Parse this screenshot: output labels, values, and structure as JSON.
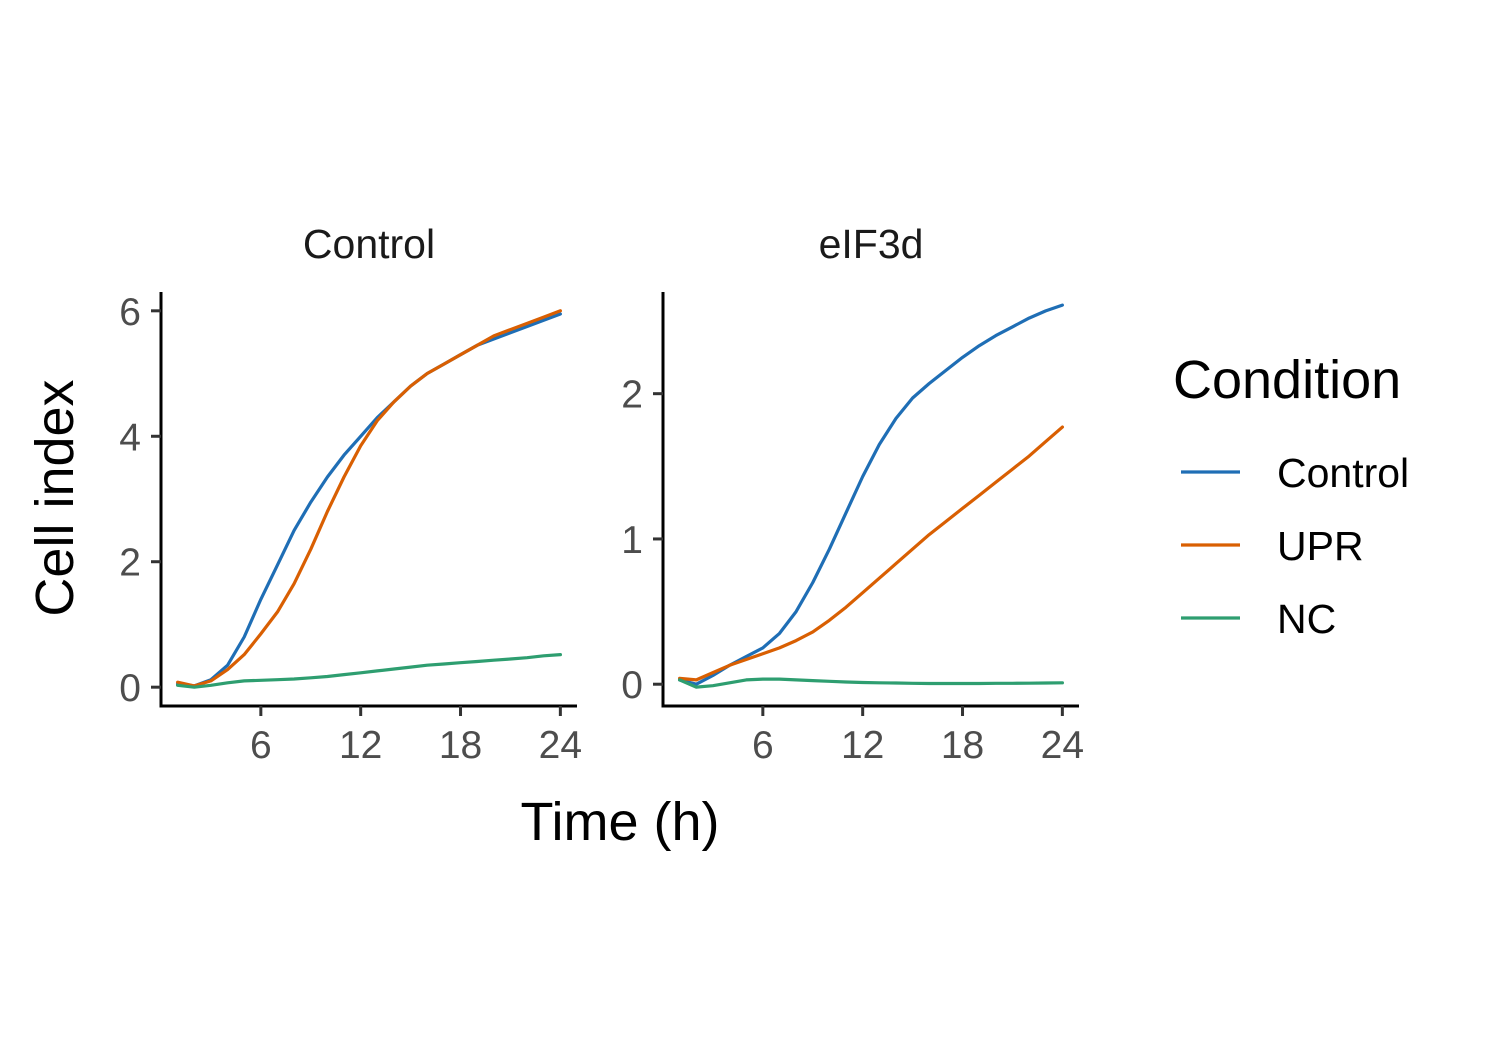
{
  "chart_data": {
    "type": "line",
    "xlabel": "Time (h)",
    "ylabel": "Cell index",
    "legend": {
      "title": "Condition",
      "position": "right",
      "entries": [
        {
          "name": "Control",
          "color": "#1F6EB5"
        },
        {
          "name": "UPR",
          "color": "#D95F02"
        },
        {
          "name": "NC",
          "color": "#2E9E70"
        }
      ]
    },
    "grid": false,
    "panels": [
      {
        "title": "Control",
        "xlim": [
          0,
          25
        ],
        "ylim": [
          -0.3,
          6.3
        ],
        "x_ticks": [
          6,
          12,
          18,
          24
        ],
        "y_ticks": [
          0,
          2,
          4,
          6
        ],
        "series": [
          {
            "name": "Control",
            "color": "#1F6EB5",
            "x": [
              1,
              2,
              3,
              4,
              5,
              6,
              7,
              8,
              9,
              10,
              11,
              12,
              13,
              14,
              15,
              16,
              17,
              18,
              19,
              20,
              21,
              22,
              23,
              24
            ],
            "y": [
              0.05,
              0.02,
              0.12,
              0.35,
              0.8,
              1.4,
              1.95,
              2.5,
              2.95,
              3.35,
              3.7,
              4.0,
              4.3,
              4.55,
              4.8,
              5.0,
              5.15,
              5.3,
              5.45,
              5.55,
              5.65,
              5.75,
              5.85,
              5.95
            ]
          },
          {
            "name": "UPR",
            "color": "#D95F02",
            "x": [
              1,
              2,
              3,
              4,
              5,
              6,
              7,
              8,
              9,
              10,
              11,
              12,
              13,
              14,
              15,
              16,
              17,
              18,
              19,
              20,
              21,
              22,
              23,
              24
            ],
            "y": [
              0.08,
              0.02,
              0.1,
              0.28,
              0.52,
              0.85,
              1.2,
              1.65,
              2.2,
              2.8,
              3.35,
              3.85,
              4.25,
              4.55,
              4.8,
              5.0,
              5.15,
              5.3,
              5.45,
              5.6,
              5.7,
              5.8,
              5.9,
              6.0
            ]
          },
          {
            "name": "NC",
            "color": "#2E9E70",
            "x": [
              1,
              2,
              3,
              4,
              5,
              6,
              7,
              8,
              9,
              10,
              11,
              12,
              13,
              14,
              15,
              16,
              17,
              18,
              19,
              20,
              21,
              22,
              23,
              24
            ],
            "y": [
              0.03,
              0.0,
              0.03,
              0.07,
              0.1,
              0.11,
              0.12,
              0.13,
              0.15,
              0.17,
              0.2,
              0.23,
              0.26,
              0.29,
              0.32,
              0.35,
              0.37,
              0.39,
              0.41,
              0.43,
              0.45,
              0.47,
              0.5,
              0.52
            ]
          }
        ]
      },
      {
        "title": "eIF3d",
        "xlim": [
          0,
          25
        ],
        "ylim": [
          -0.15,
          2.7
        ],
        "x_ticks": [
          6,
          12,
          18,
          24
        ],
        "y_ticks": [
          0,
          1,
          2
        ],
        "series": [
          {
            "name": "Control",
            "color": "#1F6EB5",
            "x": [
              1,
              2,
              3,
              4,
              5,
              6,
              7,
              8,
              9,
              10,
              11,
              12,
              13,
              14,
              15,
              16,
              17,
              18,
              19,
              20,
              21,
              22,
              23,
              24
            ],
            "y": [
              0.03,
              0.0,
              0.06,
              0.13,
              0.19,
              0.25,
              0.35,
              0.5,
              0.7,
              0.93,
              1.18,
              1.43,
              1.65,
              1.83,
              1.97,
              2.07,
              2.16,
              2.25,
              2.33,
              2.4,
              2.46,
              2.52,
              2.57,
              2.61
            ]
          },
          {
            "name": "UPR",
            "color": "#D95F02",
            "x": [
              1,
              2,
              3,
              4,
              5,
              6,
              7,
              8,
              9,
              10,
              11,
              12,
              13,
              14,
              15,
              16,
              17,
              18,
              19,
              20,
              21,
              22,
              23,
              24
            ],
            "y": [
              0.04,
              0.03,
              0.08,
              0.13,
              0.17,
              0.21,
              0.25,
              0.3,
              0.36,
              0.44,
              0.53,
              0.63,
              0.73,
              0.83,
              0.93,
              1.03,
              1.12,
              1.21,
              1.3,
              1.39,
              1.48,
              1.57,
              1.67,
              1.77
            ]
          },
          {
            "name": "NC",
            "color": "#2E9E70",
            "x": [
              1,
              2,
              3,
              4,
              5,
              6,
              7,
              8,
              9,
              10,
              11,
              12,
              13,
              14,
              15,
              16,
              17,
              18,
              19,
              20,
              21,
              22,
              23,
              24
            ],
            "y": [
              0.03,
              -0.02,
              -0.01,
              0.01,
              0.03,
              0.035,
              0.035,
              0.03,
              0.025,
              0.02,
              0.015,
              0.012,
              0.01,
              0.008,
              0.006,
              0.005,
              0.005,
              0.005,
              0.005,
              0.006,
              0.006,
              0.007,
              0.008,
              0.01
            ]
          }
        ]
      }
    ]
  }
}
